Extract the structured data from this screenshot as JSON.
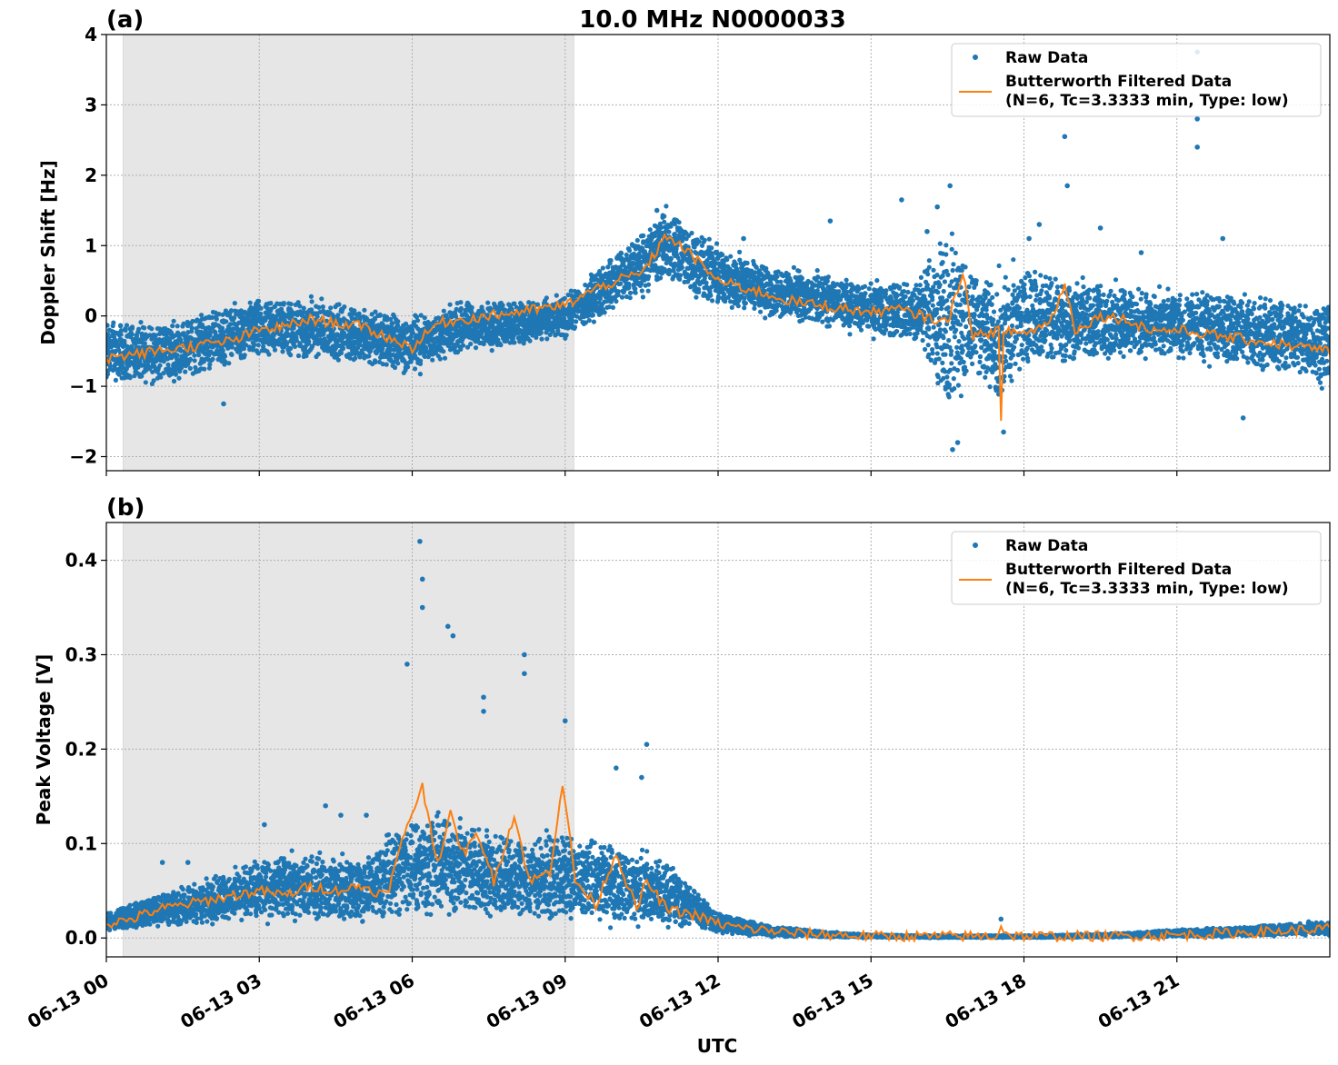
{
  "figure": {
    "title": "10.0 MHz N0000033",
    "xlabel": "UTC"
  },
  "colors": {
    "raw": "#1f77b4",
    "filtered": "#ff7f0e",
    "shade": "#e6e6e6"
  },
  "chart_data": [
    {
      "panel": "(a)",
      "type": "scatter",
      "ylabel": "Doppler Shift [Hz]",
      "ylim": [
        -2.2,
        4.0
      ],
      "yticks": [
        -2,
        -1,
        0,
        1,
        2,
        3,
        4
      ],
      "ytick_labels": [
        "−2",
        "−1",
        "0",
        "1",
        "2",
        "3",
        "4"
      ],
      "xlim_hours": [
        0,
        24
      ],
      "xticks_hours": [
        0,
        3,
        6,
        9,
        12,
        15,
        18,
        21
      ],
      "xtick_labels": [
        "06-13 00",
        "06-13 03",
        "06-13 06",
        "06-13 09",
        "06-13 12",
        "06-13 15",
        "06-13 18",
        "06-13 21"
      ],
      "shaded_span_hours": [
        0.33,
        9.17
      ],
      "grid": true,
      "legend": {
        "placement": "top-right",
        "raw_label": "Raw Data",
        "filtered_label_line1": "Butterworth Filtered Data",
        "filtered_label_line2": "(N=6, Tc=3.3333 min, Type: low)"
      },
      "series": [
        {
          "name": "Butterworth Filtered Data",
          "type": "line",
          "x_hours": [
            0,
            0.5,
            1,
            1.5,
            2,
            2.5,
            3,
            3.5,
            4,
            4.5,
            5,
            5.5,
            6,
            6.5,
            7,
            7.5,
            8,
            8.5,
            9,
            9.5,
            10,
            10.5,
            11,
            11.5,
            12,
            12.5,
            13,
            13.5,
            14,
            14.5,
            15,
            15.5,
            16,
            16.5,
            16.8,
            17,
            17.5,
            17.55,
            17.6,
            17.7,
            18,
            18.5,
            18.8,
            19,
            19.5,
            20,
            20.5,
            21,
            21.5,
            22,
            22.5,
            23,
            23.5,
            24
          ],
          "values": [
            -0.6,
            -0.55,
            -0.5,
            -0.45,
            -0.4,
            -0.35,
            -0.2,
            -0.15,
            -0.05,
            -0.1,
            -0.15,
            -0.3,
            -0.45,
            -0.1,
            -0.05,
            0.0,
            0.05,
            0.1,
            0.15,
            0.35,
            0.5,
            0.6,
            1.15,
            0.85,
            0.5,
            0.4,
            0.3,
            0.2,
            0.15,
            0.1,
            0.05,
            0.1,
            0.0,
            -0.1,
            0.65,
            -0.3,
            -0.2,
            -1.5,
            -0.3,
            -0.2,
            -0.25,
            -0.1,
            0.45,
            -0.2,
            0.0,
            -0.05,
            -0.2,
            -0.2,
            -0.25,
            -0.3,
            -0.35,
            -0.4,
            -0.45,
            -0.5
          ]
        },
        {
          "name": "Raw Data",
          "type": "scatter_band",
          "band_x_hours": [
            0,
            1,
            2,
            3,
            4,
            5,
            6,
            7,
            8,
            9,
            10,
            11,
            12,
            13,
            14,
            15,
            16,
            16.5,
            17,
            17.5,
            18,
            19,
            20,
            21,
            22,
            23,
            24
          ],
          "band_low": [
            -1.05,
            -1.05,
            -0.9,
            -0.7,
            -0.75,
            -0.8,
            -0.95,
            -0.6,
            -0.5,
            -0.4,
            0.0,
            0.35,
            0.0,
            -0.1,
            -0.2,
            -0.35,
            -0.55,
            -1.85,
            -0.95,
            -1.6,
            -0.9,
            -0.8,
            -0.7,
            -0.75,
            -0.8,
            -0.95,
            -1.1
          ],
          "band_high": [
            0.05,
            0.0,
            0.15,
            0.35,
            0.35,
            0.25,
            0.1,
            0.3,
            0.3,
            0.35,
            1.0,
            1.7,
            1.1,
            0.8,
            0.7,
            0.55,
            0.65,
            1.8,
            0.9,
            0.75,
            0.9,
            0.7,
            0.55,
            0.45,
            0.45,
            0.4,
            0.35
          ],
          "outliers_x_hours": [
            2.3,
            10.8,
            12.5,
            14.2,
            15.6,
            16.1,
            16.3,
            16.55,
            16.6,
            16.7,
            17.6,
            18.1,
            18.3,
            18.8,
            18.85,
            19.5,
            20.3,
            21.4,
            21.4,
            21.4,
            21.9,
            22.3
          ],
          "outliers_y": [
            -1.25,
            1.5,
            1.1,
            1.35,
            1.65,
            1.2,
            1.55,
            1.85,
            -1.9,
            -1.8,
            -1.65,
            1.1,
            1.3,
            2.55,
            1.85,
            1.25,
            0.9,
            3.75,
            2.4,
            2.8,
            1.1,
            -1.45
          ]
        }
      ]
    },
    {
      "panel": "(b)",
      "type": "scatter",
      "ylabel": "Peak Voltage [V]",
      "ylim": [
        -0.02,
        0.44
      ],
      "yticks": [
        0.0,
        0.1,
        0.2,
        0.3,
        0.4
      ],
      "ytick_labels": [
        "0.0",
        "0.1",
        "0.2",
        "0.3",
        "0.4"
      ],
      "xlim_hours": [
        0,
        24
      ],
      "xticks_hours": [
        0,
        3,
        6,
        9,
        12,
        15,
        18,
        21
      ],
      "xtick_labels": [
        "06-13 00",
        "06-13 03",
        "06-13 06",
        "06-13 09",
        "06-13 12",
        "06-13 15",
        "06-13 18",
        "06-13 21"
      ],
      "shaded_span_hours": [
        0.33,
        9.17
      ],
      "grid": true,
      "legend": {
        "placement": "top-right",
        "raw_label": "Raw Data",
        "filtered_label_line1": "Butterworth Filtered Data",
        "filtered_label_line2": "(N=6, Tc=3.3333 min, Type: low)"
      },
      "series": [
        {
          "name": "Butterworth Filtered Data",
          "type": "line",
          "x_hours": [
            0,
            0.5,
            1,
            1.5,
            2,
            2.5,
            3,
            3.5,
            4,
            4.5,
            5,
            5.5,
            5.9,
            6.2,
            6.5,
            6.75,
            7,
            7.3,
            7.6,
            8.0,
            8.3,
            8.7,
            8.95,
            9.2,
            9.6,
            10.0,
            10.4,
            10.6,
            11,
            11.5,
            12,
            12.5,
            13,
            13.5,
            14,
            15,
            16,
            17,
            17.45,
            17.55,
            17.7,
            18,
            19,
            20,
            21,
            22,
            23,
            24
          ],
          "values": [
            0.015,
            0.02,
            0.03,
            0.035,
            0.04,
            0.045,
            0.05,
            0.045,
            0.055,
            0.05,
            0.055,
            0.045,
            0.12,
            0.16,
            0.08,
            0.13,
            0.09,
            0.11,
            0.06,
            0.13,
            0.06,
            0.07,
            0.165,
            0.06,
            0.035,
            0.09,
            0.03,
            0.06,
            0.03,
            0.025,
            0.015,
            0.01,
            0.008,
            0.005,
            0.004,
            0.002,
            0.002,
            0.002,
            0.002,
            0.012,
            0.003,
            0.002,
            0.002,
            0.002,
            0.003,
            0.005,
            0.007,
            0.01
          ]
        },
        {
          "name": "Raw Data",
          "type": "scatter_band",
          "band_x_hours": [
            0,
            1,
            2,
            3,
            4,
            5,
            6,
            7,
            8,
            9,
            10,
            11,
            12,
            13,
            14,
            15,
            16,
            17,
            18,
            19,
            20,
            21,
            22,
            23,
            24
          ],
          "band_low": [
            0.005,
            0.008,
            0.01,
            0.012,
            0.01,
            0.01,
            0.008,
            0.008,
            0.008,
            0.008,
            0.005,
            0.005,
            0.003,
            0.0,
            0.0,
            0.0,
            0.0,
            0.0,
            0.0,
            0.0,
            0.0,
            0.0,
            0.0,
            0.001,
            0.002
          ],
          "band_high": [
            0.03,
            0.05,
            0.07,
            0.09,
            0.1,
            0.09,
            0.15,
            0.14,
            0.12,
            0.12,
            0.11,
            0.09,
            0.03,
            0.015,
            0.008,
            0.004,
            0.003,
            0.003,
            0.003,
            0.004,
            0.006,
            0.01,
            0.012,
            0.016,
            0.02
          ],
          "outliers_x_hours": [
            1.1,
            1.6,
            3.1,
            4.3,
            4.6,
            5.1,
            5.9,
            6.15,
            6.2,
            6.2,
            6.7,
            6.8,
            7.4,
            7.4,
            8.2,
            8.2,
            9.0,
            10.0,
            10.5,
            10.6,
            17.55
          ],
          "outliers_y": [
            0.08,
            0.08,
            0.12,
            0.14,
            0.13,
            0.13,
            0.29,
            0.42,
            0.38,
            0.35,
            0.33,
            0.32,
            0.255,
            0.24,
            0.3,
            0.28,
            0.23,
            0.18,
            0.17,
            0.205,
            0.02
          ]
        }
      ]
    }
  ]
}
